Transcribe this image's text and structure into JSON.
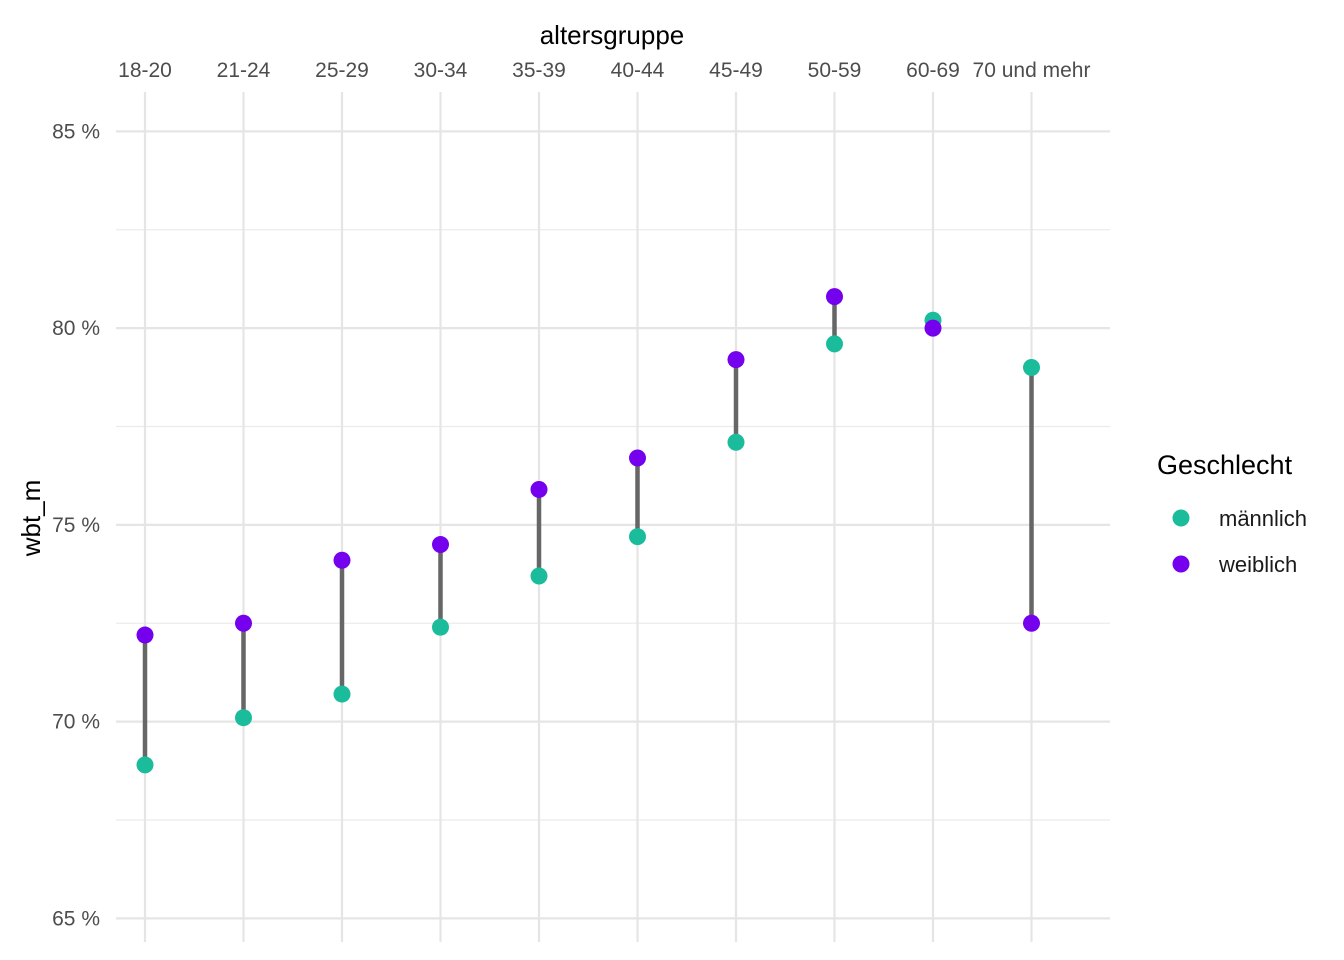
{
  "chart_data": {
    "type": "dumbbell",
    "xlabel": "altersgruppe",
    "ylabel": "wbt_m",
    "categories": [
      "18-20",
      "21-24",
      "25-29",
      "30-34",
      "35-39",
      "40-44",
      "45-49",
      "50-59",
      "60-69",
      "70 und mehr"
    ],
    "ylim": [
      64.4,
      86
    ],
    "y_ticks": [
      65,
      70,
      75,
      80,
      85
    ],
    "y_tick_labels": [
      "65 %",
      "70 %",
      "75 %",
      "80 %",
      "85 %"
    ],
    "x_axis_position": "top",
    "grid": true,
    "connector_color": "#666666",
    "legend": {
      "title": "Geschlecht",
      "position": "right"
    },
    "series": [
      {
        "name": "männlich",
        "color": "#1ABC9C",
        "values": [
          68.9,
          70.1,
          70.7,
          72.4,
          73.7,
          74.7,
          77.1,
          79.6,
          80.2,
          79.0
        ]
      },
      {
        "name": "weiblich",
        "color": "#7400EE",
        "values": [
          72.2,
          72.5,
          74.1,
          74.5,
          75.9,
          76.7,
          79.2,
          80.8,
          80.0,
          72.5
        ]
      }
    ]
  }
}
